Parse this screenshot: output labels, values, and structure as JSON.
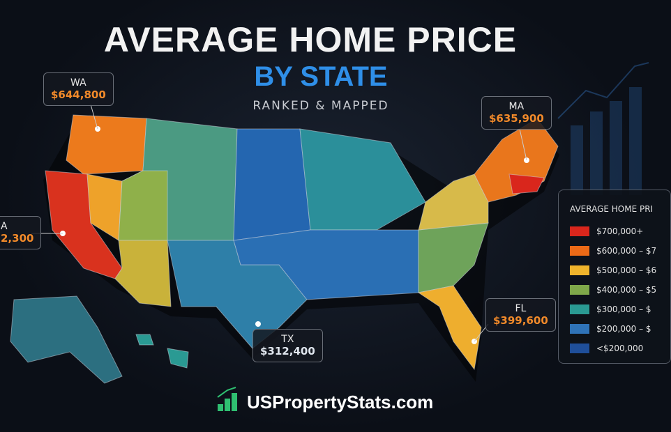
{
  "header": {
    "title": "AVERAGE HOME PRICE",
    "subtitle": "BY STATE",
    "tagline": "RANKED & MAPPED"
  },
  "callouts": [
    {
      "state": "WA",
      "price": "$644,800"
    },
    {
      "state": "MA",
      "price": "$635,900"
    },
    {
      "state": "A",
      "price": "2,300"
    },
    {
      "state": "TX",
      "price": "$312,400"
    },
    {
      "state": "FL",
      "price": "$399,600"
    }
  ],
  "legend": {
    "title": "AVERAGE HOME PRI",
    "items": [
      {
        "label": "$700,000+",
        "color": "#d9261c"
      },
      {
        "label": "$600,000 – $7",
        "color": "#ec6a17"
      },
      {
        "label": "$500,000 – $6",
        "color": "#f0b42c"
      },
      {
        "label": "$400,000 – $5",
        "color": "#7fa84a"
      },
      {
        "label": "$300,000 – $",
        "color": "#2a9a93"
      },
      {
        "label": "$200,000 – $",
        "color": "#2f73b8"
      },
      {
        "label": "<$200,000",
        "color": "#1f4f9a"
      }
    ]
  },
  "brand": "USPropertyStats.com"
}
